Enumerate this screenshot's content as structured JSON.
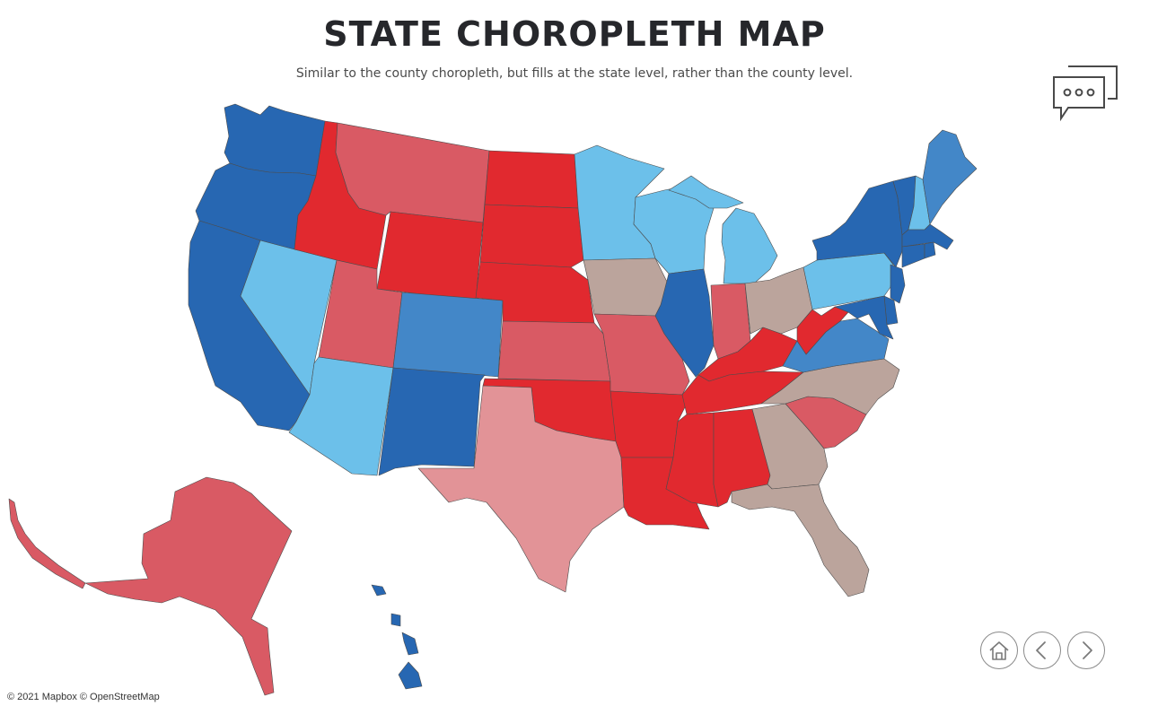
{
  "header": {
    "title": "STATE CHOROPLETH MAP",
    "subtitle": "Similar to the county choropleth, but fills at the state level, rather than the county level."
  },
  "palette": {
    "dark_blue": "#2767b2",
    "medium_blue": "#4387c8",
    "light_blue": "#6cc0ea",
    "tan": "#bba49c",
    "pink": "#e29397",
    "light_red": "#d95a64",
    "red": "#e1292f"
  },
  "states": [
    {
      "name": "Washington",
      "color": "dark_blue"
    },
    {
      "name": "Oregon",
      "color": "dark_blue"
    },
    {
      "name": "California",
      "color": "dark_blue"
    },
    {
      "name": "Nevada",
      "color": "light_blue"
    },
    {
      "name": "Idaho",
      "color": "red"
    },
    {
      "name": "Montana",
      "color": "light_red"
    },
    {
      "name": "Wyoming",
      "color": "red"
    },
    {
      "name": "Utah",
      "color": "light_red"
    },
    {
      "name": "Arizona",
      "color": "light_blue"
    },
    {
      "name": "Colorado",
      "color": "medium_blue"
    },
    {
      "name": "New Mexico",
      "color": "dark_blue"
    },
    {
      "name": "North Dakota",
      "color": "red"
    },
    {
      "name": "South Dakota",
      "color": "red"
    },
    {
      "name": "Nebraska",
      "color": "red"
    },
    {
      "name": "Kansas",
      "color": "light_red"
    },
    {
      "name": "Oklahoma",
      "color": "red"
    },
    {
      "name": "Texas",
      "color": "pink"
    },
    {
      "name": "Minnesota",
      "color": "light_blue"
    },
    {
      "name": "Iowa",
      "color": "tan"
    },
    {
      "name": "Missouri",
      "color": "light_red"
    },
    {
      "name": "Arkansas",
      "color": "red"
    },
    {
      "name": "Louisiana",
      "color": "red"
    },
    {
      "name": "Wisconsin",
      "color": "light_blue"
    },
    {
      "name": "Illinois",
      "color": "dark_blue"
    },
    {
      "name": "Michigan",
      "color": "light_blue"
    },
    {
      "name": "Indiana",
      "color": "light_red"
    },
    {
      "name": "Ohio",
      "color": "tan"
    },
    {
      "name": "Kentucky",
      "color": "red"
    },
    {
      "name": "Tennessee",
      "color": "red"
    },
    {
      "name": "Mississippi",
      "color": "red"
    },
    {
      "name": "Alabama",
      "color": "red"
    },
    {
      "name": "Georgia",
      "color": "tan"
    },
    {
      "name": "Florida",
      "color": "tan"
    },
    {
      "name": "South Carolina",
      "color": "light_red"
    },
    {
      "name": "North Carolina",
      "color": "tan"
    },
    {
      "name": "Virginia",
      "color": "medium_blue"
    },
    {
      "name": "West Virginia",
      "color": "red"
    },
    {
      "name": "Pennsylvania",
      "color": "light_blue"
    },
    {
      "name": "New York",
      "color": "dark_blue"
    },
    {
      "name": "New Jersey",
      "color": "dark_blue"
    },
    {
      "name": "Delaware",
      "color": "dark_blue"
    },
    {
      "name": "Maryland",
      "color": "dark_blue"
    },
    {
      "name": "Vermont",
      "color": "dark_blue"
    },
    {
      "name": "New Hampshire",
      "color": "light_blue"
    },
    {
      "name": "Maine",
      "color": "medium_blue"
    },
    {
      "name": "Massachusetts",
      "color": "dark_blue"
    },
    {
      "name": "Connecticut",
      "color": "dark_blue"
    },
    {
      "name": "Rhode Island",
      "color": "dark_blue"
    },
    {
      "name": "Alaska",
      "color": "light_red"
    },
    {
      "name": "Hawaii",
      "color": "dark_blue"
    }
  ],
  "icons": {
    "chat": "speech-bubbles-icon",
    "home": "home-icon",
    "back": "chevron-left-icon",
    "forward": "chevron-right-icon"
  },
  "footer": {
    "attribution": "© 2021 Mapbox © OpenStreetMap"
  }
}
